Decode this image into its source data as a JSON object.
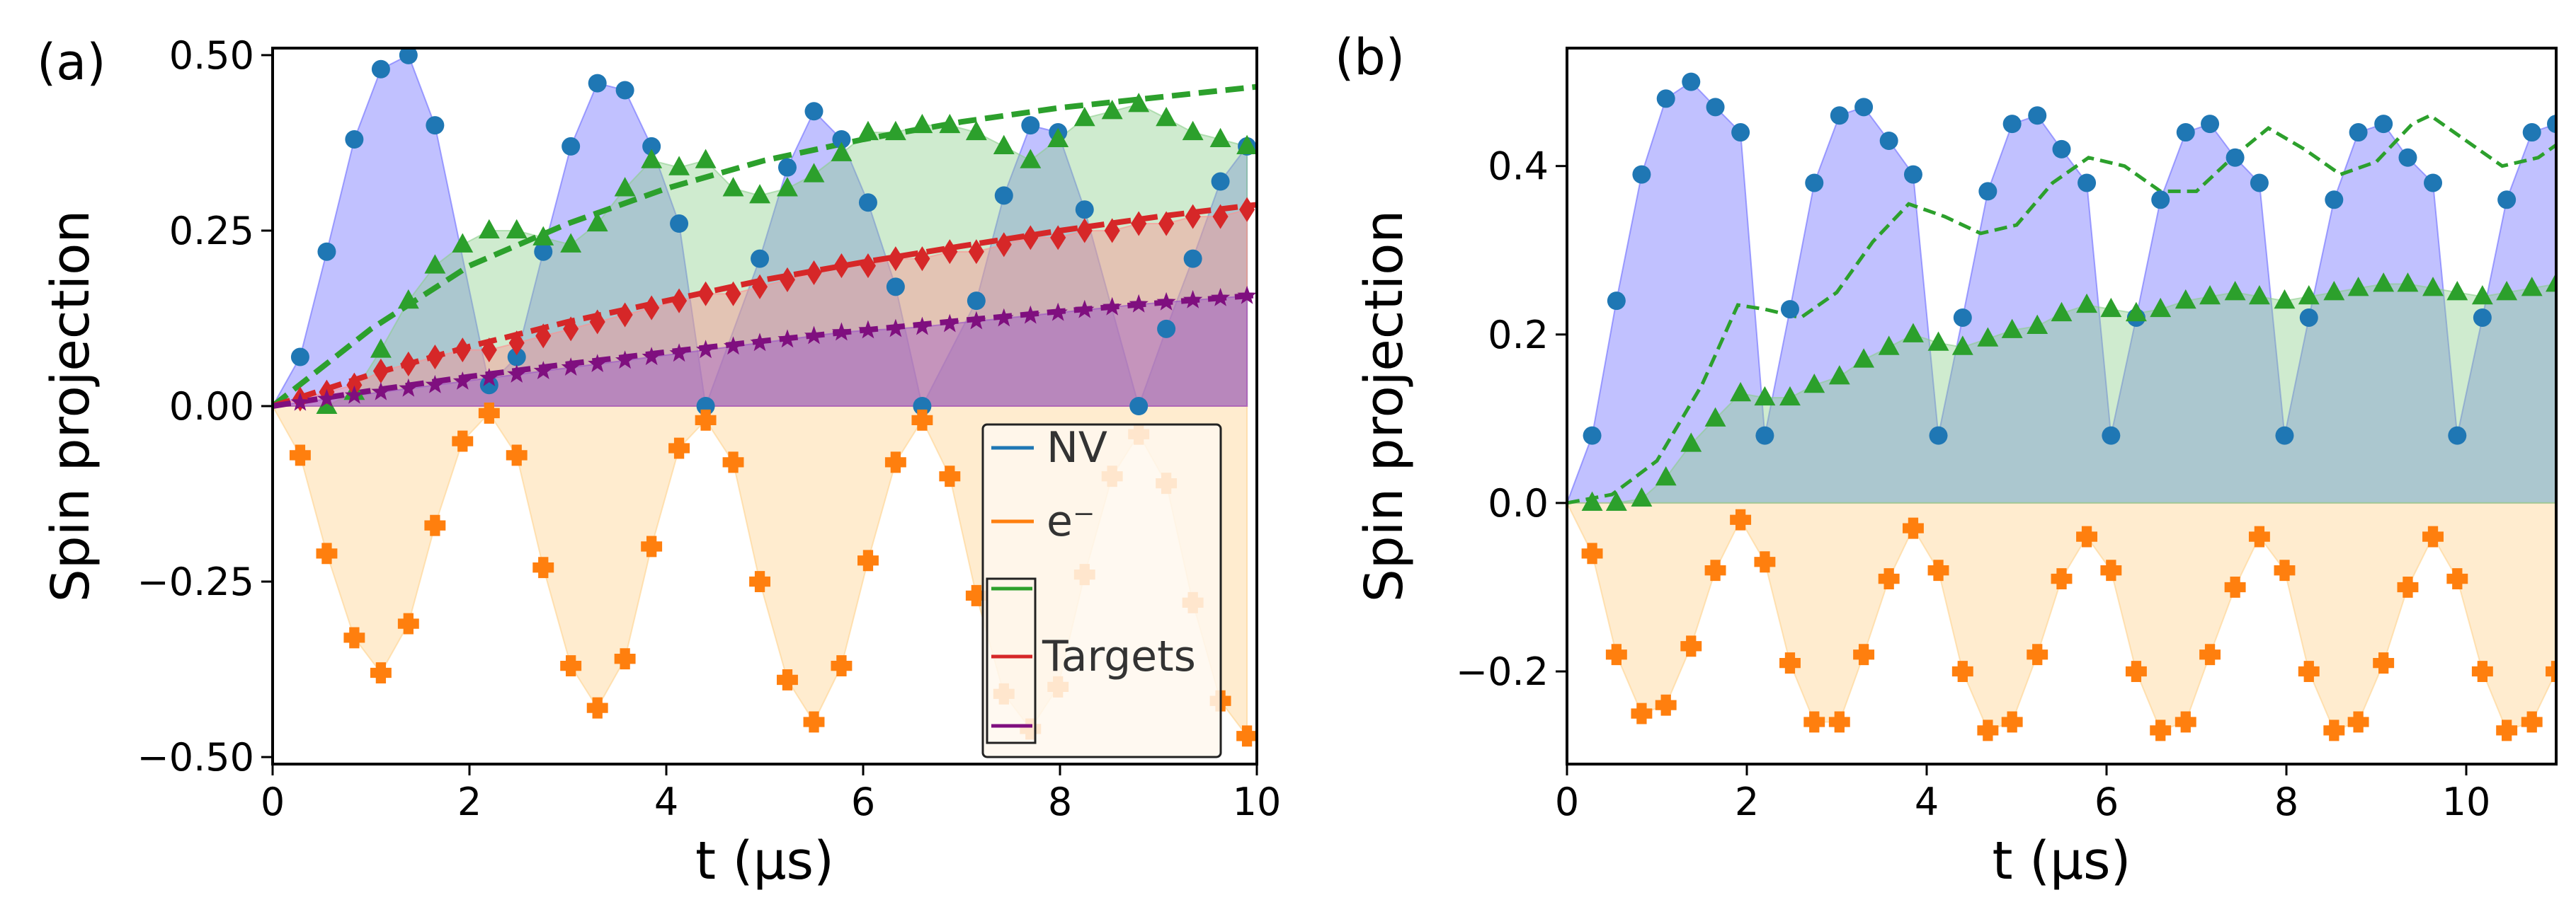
{
  "colors": {
    "nv": "#1f77b4",
    "nv_fill": "#6b6bff",
    "electron": "#ff7f0e",
    "electron_fill": "#ffd28c",
    "target1": "#2ca02c",
    "target1_fill": "#8ccf8c",
    "target2": "#d62728",
    "target2_fill": "#ff8f8f",
    "target3": "#7f0f7f",
    "target3_fill": "#9a52c8"
  },
  "chart_data": [
    {
      "type": "area",
      "panel_label": "(a)",
      "xlabel": "t (μs)",
      "ylabel": "Spin projection",
      "xlim": [
        0,
        10
      ],
      "ylim": [
        -0.51,
        0.51
      ],
      "xticks": [
        0,
        2,
        4,
        6,
        8,
        10
      ],
      "xtick_labels": [
        "0",
        "2",
        "4",
        "6",
        "8",
        "10"
      ],
      "yticks": [
        -0.5,
        -0.25,
        0,
        0.25,
        0.5
      ],
      "ytick_labels": [
        "−0.50",
        "−0.25",
        "0.00",
        "0.25",
        "0.50"
      ],
      "grid": false,
      "legend": {
        "placement": "lower-right",
        "entries": [
          "NV",
          "e⁻",
          "Targets"
        ]
      },
      "series": [
        {
          "name": "NV",
          "marker": "circle",
          "color_key": "nv",
          "fill_key": "nv_fill",
          "x": [
            0.28,
            0.55,
            0.83,
            1.1,
            1.38,
            1.65,
            2.2,
            2.48,
            2.75,
            3.03,
            3.3,
            3.58,
            3.85,
            4.13,
            4.4,
            4.95,
            5.23,
            5.5,
            5.78,
            6.05,
            6.33,
            6.6,
            7.15,
            7.43,
            7.7,
            7.98,
            8.25,
            8.8,
            9.08,
            9.35,
            9.63,
            9.9
          ],
          "y": [
            0.07,
            0.22,
            0.38,
            0.48,
            0.5,
            0.4,
            0.03,
            0.07,
            0.22,
            0.37,
            0.46,
            0.45,
            0.37,
            0.26,
            0.0,
            0.21,
            0.34,
            0.42,
            0.38,
            0.29,
            0.17,
            0.0,
            0.15,
            0.3,
            0.4,
            0.39,
            0.28,
            0.0,
            0.11,
            0.21,
            0.32,
            0.37
          ]
        },
        {
          "name": "e⁻",
          "marker": "plus",
          "color_key": "electron",
          "fill_key": "electron_fill",
          "x": [
            0.28,
            0.55,
            0.83,
            1.1,
            1.38,
            1.65,
            1.93,
            2.2,
            2.48,
            2.75,
            3.03,
            3.3,
            3.58,
            3.85,
            4.13,
            4.4,
            4.68,
            4.95,
            5.23,
            5.5,
            5.78,
            6.05,
            6.33,
            6.6,
            6.88,
            7.15,
            7.43,
            7.7,
            7.98,
            8.25,
            8.53,
            8.8,
            9.08,
            9.35,
            9.63,
            9.9
          ],
          "y": [
            -0.07,
            -0.21,
            -0.33,
            -0.38,
            -0.31,
            -0.17,
            -0.05,
            -0.01,
            -0.07,
            -0.23,
            -0.37,
            -0.43,
            -0.36,
            -0.2,
            -0.06,
            -0.02,
            -0.08,
            -0.25,
            -0.39,
            -0.45,
            -0.37,
            -0.22,
            -0.08,
            -0.02,
            -0.1,
            -0.27,
            -0.41,
            -0.46,
            -0.4,
            -0.24,
            -0.1,
            -0.04,
            -0.11,
            -0.28,
            -0.42,
            -0.47
          ]
        },
        {
          "name": "",
          "marker": "triangle",
          "color_key": "target1",
          "fill_key": "target1_fill",
          "x": [
            0.55,
            0.83,
            1.1,
            1.38,
            1.65,
            1.93,
            2.2,
            2.48,
            2.75,
            3.03,
            3.3,
            3.58,
            3.85,
            4.13,
            4.4,
            4.68,
            4.95,
            5.23,
            5.5,
            5.78,
            6.05,
            6.33,
            6.6,
            6.88,
            7.15,
            7.43,
            7.7,
            7.98,
            8.25,
            8.53,
            8.8,
            9.08,
            9.35,
            9.63,
            9.9
          ],
          "y": [
            0.0,
            0.02,
            0.08,
            0.15,
            0.2,
            0.23,
            0.25,
            0.25,
            0.24,
            0.23,
            0.26,
            0.31,
            0.35,
            0.34,
            0.35,
            0.31,
            0.3,
            0.31,
            0.33,
            0.36,
            0.39,
            0.39,
            0.4,
            0.4,
            0.39,
            0.37,
            0.35,
            0.38,
            0.41,
            0.42,
            0.43,
            0.41,
            0.39,
            0.38,
            0.37
          ]
        },
        {
          "name": "Targets",
          "marker": "diamond",
          "color_key": "target2",
          "fill_key": "target2_fill",
          "x": [
            0.28,
            0.55,
            0.83,
            1.1,
            1.38,
            1.65,
            1.93,
            2.2,
            2.48,
            2.75,
            3.03,
            3.3,
            3.58,
            3.85,
            4.13,
            4.4,
            4.68,
            4.95,
            5.23,
            5.5,
            5.78,
            6.05,
            6.33,
            6.6,
            6.88,
            7.15,
            7.43,
            7.7,
            7.98,
            8.25,
            8.53,
            8.8,
            9.08,
            9.35,
            9.63,
            9.9
          ],
          "y": [
            0.01,
            0.02,
            0.03,
            0.05,
            0.06,
            0.07,
            0.08,
            0.08,
            0.09,
            0.1,
            0.11,
            0.12,
            0.13,
            0.14,
            0.15,
            0.16,
            0.16,
            0.17,
            0.18,
            0.19,
            0.2,
            0.2,
            0.21,
            0.21,
            0.22,
            0.22,
            0.23,
            0.24,
            0.24,
            0.25,
            0.25,
            0.26,
            0.26,
            0.27,
            0.27,
            0.28
          ]
        },
        {
          "name": "",
          "marker": "star",
          "color_key": "target3",
          "fill_key": "target3_fill",
          "x": [
            0.28,
            0.55,
            0.83,
            1.1,
            1.38,
            1.65,
            1.93,
            2.2,
            2.48,
            2.75,
            3.03,
            3.3,
            3.58,
            3.85,
            4.13,
            4.4,
            4.68,
            4.95,
            5.23,
            5.5,
            5.78,
            6.05,
            6.33,
            6.6,
            6.88,
            7.15,
            7.43,
            7.7,
            7.98,
            8.25,
            8.53,
            8.8,
            9.08,
            9.35,
            9.63,
            9.9
          ],
          "y": [
            0.005,
            0.01,
            0.015,
            0.02,
            0.025,
            0.03,
            0.035,
            0.04,
            0.045,
            0.05,
            0.055,
            0.06,
            0.065,
            0.07,
            0.075,
            0.08,
            0.085,
            0.09,
            0.095,
            0.1,
            0.105,
            0.108,
            0.11,
            0.113,
            0.117,
            0.121,
            0.125,
            0.129,
            0.133,
            0.137,
            0.141,
            0.145,
            0.148,
            0.151,
            0.154,
            0.157
          ]
        }
      ],
      "dashed_fits": [
        {
          "color_key": "target1",
          "x": [
            0,
            1,
            2,
            3,
            4,
            5,
            6,
            7,
            8,
            9,
            10
          ],
          "y": [
            0.0,
            0.11,
            0.2,
            0.26,
            0.31,
            0.35,
            0.38,
            0.405,
            0.425,
            0.44,
            0.455
          ]
        },
        {
          "color_key": "target2",
          "x": [
            0,
            1,
            2,
            3,
            4,
            5,
            6,
            7,
            8,
            9,
            10
          ],
          "y": [
            0.0,
            0.045,
            0.085,
            0.12,
            0.15,
            0.18,
            0.205,
            0.228,
            0.25,
            0.27,
            0.287
          ]
        },
        {
          "color_key": "target3",
          "x": [
            0,
            1,
            2,
            3,
            4,
            5,
            6,
            7,
            8,
            9,
            10
          ],
          "y": [
            0.0,
            0.022,
            0.042,
            0.06,
            0.077,
            0.093,
            0.108,
            0.122,
            0.135,
            0.147,
            0.158
          ]
        }
      ]
    },
    {
      "type": "area",
      "panel_label": "(b)",
      "xlabel": "t (μs)",
      "ylabel": "Spin projection",
      "xlim": [
        0,
        11
      ],
      "ylim": [
        -0.31,
        0.54
      ],
      "xticks": [
        0,
        2,
        4,
        6,
        8,
        10
      ],
      "xtick_labels": [
        "0",
        "2",
        "4",
        "6",
        "8",
        "10"
      ],
      "yticks": [
        -0.2,
        0,
        0.2,
        0.4
      ],
      "ytick_labels": [
        "−0.2",
        "0.0",
        "0.2",
        "0.4"
      ],
      "grid": false,
      "series": [
        {
          "name": "",
          "marker": "circle",
          "color_key": "nv",
          "fill_key": "nv_fill",
          "x": [
            0.28,
            0.55,
            0.83,
            1.1,
            1.38,
            1.65,
            1.93,
            2.2,
            2.48,
            2.75,
            3.03,
            3.3,
            3.58,
            3.85,
            4.13,
            4.4,
            4.68,
            4.95,
            5.23,
            5.5,
            5.78,
            6.05,
            6.33,
            6.6,
            6.88,
            7.15,
            7.43,
            7.7,
            7.98,
            8.25,
            8.53,
            8.8,
            9.08,
            9.35,
            9.63,
            9.9,
            10.18,
            10.45,
            10.73,
            11.0
          ],
          "y": [
            0.08,
            0.24,
            0.39,
            0.48,
            0.5,
            0.47,
            0.44,
            0.08,
            0.23,
            0.38,
            0.46,
            0.47,
            0.43,
            0.39,
            0.08,
            0.22,
            0.37,
            0.45,
            0.46,
            0.42,
            0.38,
            0.08,
            0.22,
            0.36,
            0.44,
            0.45,
            0.41,
            0.38,
            0.08,
            0.22,
            0.36,
            0.44,
            0.45,
            0.41,
            0.38,
            0.08,
            0.22,
            0.36,
            0.44,
            0.45
          ]
        },
        {
          "name": "",
          "marker": "plus",
          "color_key": "electron",
          "fill_key": "electron_fill",
          "x": [
            0.28,
            0.55,
            0.83,
            1.1,
            1.38,
            1.65,
            1.93,
            2.2,
            2.48,
            2.75,
            3.03,
            3.3,
            3.58,
            3.85,
            4.13,
            4.4,
            4.68,
            4.95,
            5.23,
            5.5,
            5.78,
            6.05,
            6.33,
            6.6,
            6.88,
            7.15,
            7.43,
            7.7,
            7.98,
            8.25,
            8.53,
            8.8,
            9.08,
            9.35,
            9.63,
            9.9,
            10.18,
            10.45,
            10.73,
            11.0
          ],
          "y": [
            -0.06,
            -0.18,
            -0.25,
            -0.24,
            -0.17,
            -0.08,
            -0.02,
            -0.07,
            -0.19,
            -0.26,
            -0.26,
            -0.18,
            -0.09,
            -0.03,
            -0.08,
            -0.2,
            -0.27,
            -0.26,
            -0.18,
            -0.09,
            -0.04,
            -0.08,
            -0.2,
            -0.27,
            -0.26,
            -0.18,
            -0.1,
            -0.04,
            -0.08,
            -0.2,
            -0.27,
            -0.26,
            -0.19,
            -0.1,
            -0.04,
            -0.09,
            -0.2,
            -0.27,
            -0.26,
            -0.2
          ]
        },
        {
          "name": "",
          "marker": "triangle",
          "color_key": "target1",
          "fill_key": "target1_fill",
          "x": [
            0.28,
            0.55,
            0.83,
            1.1,
            1.38,
            1.65,
            1.93,
            2.2,
            2.48,
            2.75,
            3.03,
            3.3,
            3.58,
            3.85,
            4.13,
            4.4,
            4.68,
            4.95,
            5.23,
            5.5,
            5.78,
            6.05,
            6.33,
            6.6,
            6.88,
            7.15,
            7.43,
            7.7,
            7.98,
            8.25,
            8.53,
            8.8,
            9.08,
            9.35,
            9.63,
            9.9,
            10.18,
            10.45,
            10.73,
            11.0
          ],
          "y": [
            0.0,
            0.0,
            0.005,
            0.03,
            0.07,
            0.1,
            0.13,
            0.125,
            0.125,
            0.14,
            0.15,
            0.17,
            0.185,
            0.2,
            0.19,
            0.185,
            0.195,
            0.205,
            0.21,
            0.225,
            0.235,
            0.23,
            0.225,
            0.23,
            0.24,
            0.245,
            0.25,
            0.245,
            0.24,
            0.245,
            0.25,
            0.255,
            0.26,
            0.26,
            0.255,
            0.25,
            0.245,
            0.25,
            0.255,
            0.26
          ]
        }
      ],
      "dashed_fits": [
        {
          "color_key": "target1",
          "x": [
            0,
            0.5,
            1.0,
            1.5,
            1.9,
            2.2,
            2.6,
            3.0,
            3.4,
            3.8,
            4.2,
            4.6,
            5.0,
            5.4,
            5.8,
            6.2,
            6.6,
            7.0,
            7.4,
            7.8,
            8.2,
            8.6,
            9.0,
            9.4,
            9.6,
            10.0,
            10.4,
            10.8,
            11.0
          ],
          "y": [
            0.0,
            0.01,
            0.05,
            0.14,
            0.235,
            0.23,
            0.22,
            0.25,
            0.31,
            0.355,
            0.34,
            0.32,
            0.33,
            0.38,
            0.41,
            0.4,
            0.37,
            0.37,
            0.41,
            0.445,
            0.42,
            0.39,
            0.405,
            0.45,
            0.46,
            0.43,
            0.4,
            0.41,
            0.425
          ]
        }
      ]
    }
  ]
}
